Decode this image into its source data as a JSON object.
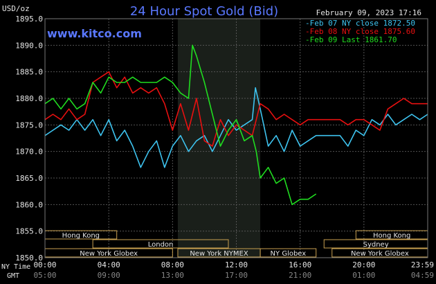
{
  "header": {
    "title": "24 Hour Spot Gold (Bid)",
    "units": "USD/oz",
    "timestamp": "February 09, 2023 17:16",
    "site": "www.kitco.com"
  },
  "legend": [
    {
      "text": "Feb 07 NY close 1872.50",
      "color": "#3ec4f0"
    },
    {
      "text": "Feb 08 NY close 1875.60",
      "color": "#e81010"
    },
    {
      "text": "Feb 09 Last 1861.70",
      "color": "#20dd20"
    }
  ],
  "axis_titles": {
    "ny_time": "NY Time",
    "gmt": "GMT"
  },
  "x_ticks_ny": [
    "00:00",
    "04:00",
    "08:00",
    "12:00",
    "16:00",
    "20:00",
    "23:59"
  ],
  "x_ticks_gmt": [
    "05:00",
    "09:00",
    "13:00",
    "17:00",
    "21:00",
    "01:00",
    "04:59"
  ],
  "sessions": {
    "row1": [
      {
        "label": "Hong Kong",
        "start": 0,
        "end": 4.5
      },
      {
        "label": "Hong Kong",
        "start": 19.5,
        "end": 24
      }
    ],
    "row2": [
      {
        "label": "London",
        "start": 3,
        "end": 11.5
      },
      {
        "label": "Sydney",
        "start": 17.5,
        "end": 24
      }
    ],
    "row3": [
      {
        "label": "New York Globex",
        "start": 0,
        "end": 8
      },
      {
        "label": "New York NYMEX",
        "start": 8.33,
        "end": 13.5
      },
      {
        "label": "NY Globex",
        "start": 13.5,
        "end": 17
      },
      {
        "label": "New York Globex",
        "start": 18,
        "end": 24
      }
    ]
  },
  "colors": {
    "background": "#000000",
    "grid": "#555555",
    "shade": "#1a1f1a",
    "title": "#5a78ff",
    "site": "#5a78ff",
    "session_border": "#c8a050",
    "text": "#e6e6e6"
  },
  "chart_data": {
    "type": "line",
    "title": "24 Hour Spot Gold (Bid)",
    "ylabel": "USD/oz",
    "xlim": [
      0,
      24
    ],
    "ylim": [
      1850,
      1895
    ],
    "yticks": [
      1850,
      1855,
      1860,
      1865,
      1870,
      1875,
      1880,
      1885,
      1890,
      1895
    ],
    "ytick_labels": [
      "1850.0",
      "1855.0",
      "1860.0",
      "1865.0",
      "1870.0",
      "1875.0",
      "1880.0",
      "1885.0",
      "1890.0",
      "1895.0"
    ],
    "xticks": [
      0,
      4,
      8,
      12,
      16,
      20,
      24
    ],
    "shaded_region": [
      8.33,
      13.5
    ],
    "grid": true,
    "series": [
      {
        "name": "Feb 07 NY close 1872.50",
        "color": "#3ec4f0",
        "x": [
          0,
          0.5,
          1,
          1.5,
          2,
          2.5,
          3,
          3.5,
          4,
          4.5,
          5,
          5.5,
          6,
          6.5,
          7,
          7.5,
          8,
          8.5,
          9,
          9.5,
          10,
          10.5,
          11,
          11.5,
          12,
          12.5,
          13,
          13.2,
          13.5,
          14,
          14.5,
          15,
          15.5,
          16,
          16.5,
          17,
          17.5,
          18,
          18.5,
          19,
          19.5,
          20,
          20.5,
          21,
          21.5,
          22,
          22.5,
          23,
          23.5,
          24
        ],
        "y": [
          1873,
          1874,
          1875,
          1874,
          1876,
          1874,
          1876,
          1873,
          1876,
          1872,
          1874,
          1871,
          1867,
          1870,
          1872,
          1867,
          1871,
          1873,
          1870,
          1872,
          1873,
          1870,
          1873,
          1876,
          1874,
          1875,
          1876,
          1882,
          1878,
          1871,
          1873,
          1870,
          1874,
          1871,
          1872,
          1873,
          1873,
          1873,
          1873,
          1871,
          1874,
          1873,
          1876,
          1875,
          1877,
          1875,
          1876,
          1877,
          1876,
          1877
        ]
      },
      {
        "name": "Feb 08 NY close 1875.60",
        "color": "#e81010",
        "x": [
          0,
          0.5,
          1,
          1.5,
          2,
          2.5,
          3,
          3.5,
          4,
          4.5,
          5,
          5.5,
          6,
          6.5,
          7,
          7.5,
          8,
          8.5,
          9,
          9.5,
          10,
          10.5,
          11,
          11.5,
          12,
          12.5,
          13,
          13.5,
          14,
          14.5,
          15,
          15.5,
          16,
          16.5,
          17,
          17.5,
          18,
          18.5,
          19,
          19.5,
          20,
          20.5,
          21,
          21.5,
          22,
          22.5,
          23,
          23.5,
          24
        ],
        "y": [
          1876,
          1877,
          1876,
          1878,
          1876,
          1877,
          1883,
          1884,
          1885,
          1882,
          1884,
          1881,
          1882,
          1881,
          1882,
          1879,
          1874,
          1879,
          1874,
          1880,
          1872,
          1871,
          1876,
          1873,
          1875,
          1874,
          1873,
          1879,
          1878,
          1876,
          1877,
          1876,
          1875,
          1876,
          1876,
          1876,
          1876,
          1876,
          1875,
          1876,
          1876,
          1875,
          1874,
          1878,
          1879,
          1880,
          1879,
          1879,
          1879
        ]
      },
      {
        "name": "Feb 09 Last 1861.70",
        "color": "#20dd20",
        "x": [
          0,
          0.5,
          1,
          1.5,
          2,
          2.5,
          3,
          3.5,
          4,
          4.5,
          5,
          5.5,
          6,
          6.5,
          7,
          7.5,
          8,
          8.5,
          9,
          9.25,
          9.5,
          10,
          10.5,
          11,
          11.5,
          12,
          12.5,
          13,
          13.25,
          13.5,
          14,
          14.5,
          15,
          15.5,
          16,
          16.5,
          17
        ],
        "y": [
          1879,
          1880,
          1878,
          1880,
          1878,
          1879,
          1883,
          1881,
          1884,
          1883,
          1883,
          1884,
          1883,
          1883,
          1883,
          1884,
          1883,
          1881,
          1880,
          1890,
          1888,
          1883,
          1877,
          1871,
          1874,
          1876,
          1872,
          1873,
          1870,
          1865,
          1867,
          1864,
          1865,
          1860,
          1861,
          1861,
          1862
        ]
      }
    ]
  }
}
